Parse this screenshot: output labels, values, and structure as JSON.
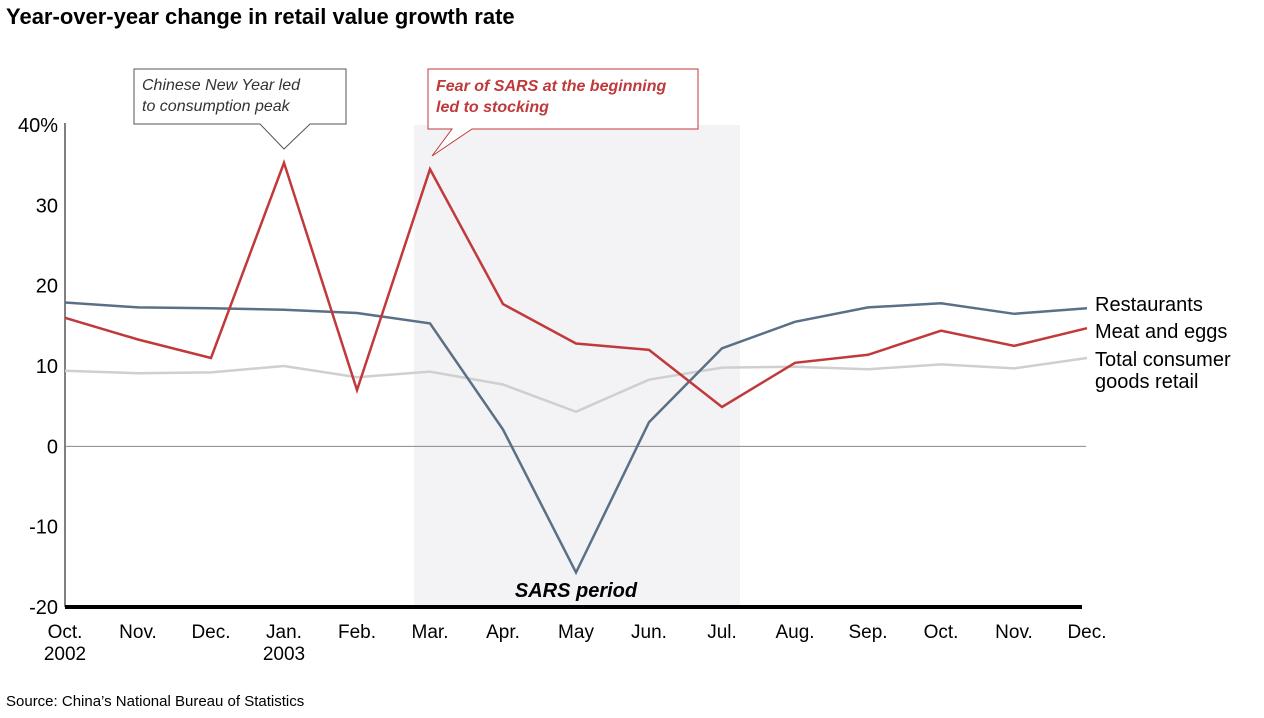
{
  "title": "Year-over-year change in retail value growth rate",
  "source": "Source: China’s National Bureau of Statistics",
  "colors": {
    "restaurants": "#5a7086",
    "meat_and_eggs": "#c0393b",
    "total_retail": "#cfcfcf",
    "sars_band": "#f3f3f5",
    "annotation_red": "#c0393b"
  },
  "chart_data": {
    "type": "line",
    "title": "Year-over-year change in retail value growth rate",
    "x": [
      "Oct.\n2002",
      "Nov.",
      "Dec.",
      "Jan.\n2003",
      "Feb.",
      "Mar.",
      "Apr.",
      "May",
      "Jun.",
      "Jul.",
      "Aug.",
      "Sep.",
      "Oct.",
      "Nov.",
      "Dec."
    ],
    "x_labels": [
      {
        "line1": "Oct.",
        "line2": "2002"
      },
      {
        "line1": "Nov.",
        "line2": ""
      },
      {
        "line1": "Dec.",
        "line2": ""
      },
      {
        "line1": "Jan.",
        "line2": "2003"
      },
      {
        "line1": "Feb.",
        "line2": ""
      },
      {
        "line1": "Mar.",
        "line2": ""
      },
      {
        "line1": "Apr.",
        "line2": ""
      },
      {
        "line1": "May",
        "line2": ""
      },
      {
        "line1": "Jun.",
        "line2": ""
      },
      {
        "line1": "Jul.",
        "line2": ""
      },
      {
        "line1": "Aug.",
        "line2": ""
      },
      {
        "line1": "Sep.",
        "line2": ""
      },
      {
        "line1": "Oct.",
        "line2": ""
      },
      {
        "line1": "Nov.",
        "line2": ""
      },
      {
        "line1": "Dec.",
        "line2": ""
      }
    ],
    "y_ticks": [
      "40%",
      "30",
      "20",
      "10",
      "0",
      "-10",
      "-20"
    ],
    "y_tick_values": [
      40,
      30,
      20,
      10,
      0,
      -10,
      -20
    ],
    "ylim": [
      -20,
      40
    ],
    "series": [
      {
        "name": "Restaurants",
        "color_key": "restaurants",
        "values": [
          17.9,
          17.3,
          17.2,
          17.0,
          16.6,
          15.3,
          2.1,
          -15.7,
          3.0,
          12.2,
          15.5,
          17.3,
          17.8,
          16.5,
          17.2
        ]
      },
      {
        "name": "Meat and eggs",
        "color_key": "meat_and_eggs",
        "values": [
          16.0,
          13.3,
          11.0,
          35.3,
          7.0,
          34.5,
          17.7,
          12.8,
          12.0,
          4.9,
          10.4,
          11.4,
          14.4,
          12.5,
          14.7
        ]
      },
      {
        "name_lines": [
          "Total consumer",
          "goods retail"
        ],
        "name": "Total consumer goods retail",
        "color_key": "total_retail",
        "values": [
          9.4,
          9.1,
          9.2,
          10.0,
          8.6,
          9.3,
          7.7,
          4.3,
          8.3,
          9.8,
          9.9,
          9.6,
          10.2,
          9.7,
          11.0
        ]
      }
    ],
    "shaded_period": {
      "label": "SARS period",
      "start": "Mar.",
      "end": "Jul."
    },
    "annotations": [
      {
        "lines": [
          "Chinese New Year led",
          "to consumption peak"
        ],
        "points_to": "Jan.\n2003",
        "style": "gray"
      },
      {
        "lines": [
          "Fear of SARS at the beginning",
          "led to stocking"
        ],
        "points_to": "Mar.",
        "style": "red"
      }
    ]
  }
}
